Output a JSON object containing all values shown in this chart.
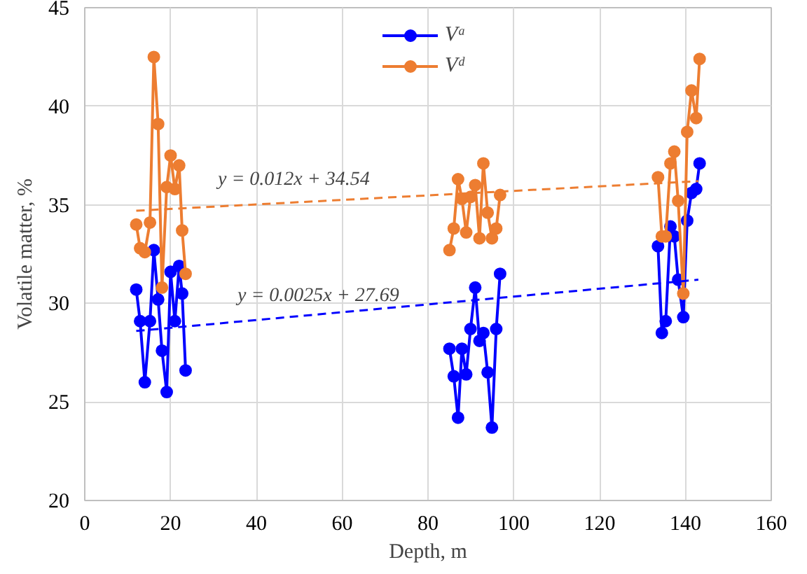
{
  "chart_data": {
    "type": "line",
    "xlabel": "Depth, m",
    "ylabel": "Volatile matter, %",
    "xlim": [
      0,
      160
    ],
    "ylim": [
      20,
      45
    ],
    "xticks": [
      0,
      20,
      40,
      60,
      80,
      100,
      120,
      140,
      160
    ],
    "yticks": [
      20,
      25,
      30,
      35,
      40,
      45
    ],
    "grid": true,
    "legend": "top",
    "marker": "circle",
    "line_style": "solid",
    "series": [
      {
        "name": "Vᵃ",
        "color": "#0000ff",
        "x": [
          12.0,
          12.9,
          14.0,
          15.2,
          16.1,
          17.1,
          18.0,
          19.1,
          20.0,
          21.0,
          22.0,
          22.7,
          23.5,
          54,
          85.0,
          86.0,
          87.0,
          87.9,
          88.9,
          89.9,
          91.0,
          92.0,
          92.9,
          93.9,
          94.9,
          95.9,
          96.8,
          115,
          133.6,
          134.5,
          135.4,
          136.5,
          137.4,
          138.3,
          139.5,
          140.4,
          141.4,
          142.5,
          143.3
        ],
        "values": [
          30.7,
          29.1,
          26.0,
          29.1,
          32.7,
          30.2,
          27.6,
          25.5,
          31.6,
          29.1,
          31.9,
          30.5,
          26.6,
          null,
          27.7,
          26.3,
          24.2,
          27.7,
          26.4,
          28.7,
          30.8,
          28.1,
          28.5,
          26.5,
          23.7,
          28.7,
          31.5,
          null,
          32.9,
          28.5,
          29.1,
          33.9,
          33.4,
          31.2,
          29.3,
          34.2,
          35.6,
          35.8,
          37.1
        ]
      },
      {
        "name": "Vᵈ",
        "color": "#ed7d31",
        "x": [
          12.0,
          12.9,
          14.0,
          15.2,
          16.1,
          17.1,
          18.0,
          19.1,
          20.0,
          21.0,
          22.0,
          22.7,
          23.5,
          54,
          85.0,
          86.0,
          87.0,
          87.9,
          88.9,
          89.9,
          91.0,
          92.0,
          92.9,
          93.9,
          94.9,
          95.9,
          96.8,
          115,
          133.6,
          134.5,
          135.4,
          136.5,
          137.4,
          138.3,
          139.5,
          140.4,
          141.4,
          142.5,
          143.3
        ],
        "values": [
          34.0,
          32.8,
          32.6,
          34.1,
          42.5,
          39.1,
          30.8,
          35.9,
          37.5,
          35.8,
          37.0,
          33.7,
          31.5,
          null,
          32.7,
          33.8,
          36.3,
          35.3,
          33.6,
          35.4,
          36.0,
          33.3,
          37.1,
          34.6,
          33.3,
          33.8,
          35.5,
          null,
          36.4,
          33.4,
          33.4,
          37.1,
          37.7,
          35.2,
          30.5,
          38.7,
          40.8,
          39.4,
          42.4
        ]
      },
      {
        "color": "#0000ff",
        "x": [
          12,
          143
        ],
        "values": [
          28.6,
          31.2
        ],
        "marker": "none",
        "line_style": "dashed"
      },
      {
        "color": "#ed7d31",
        "x": [
          12,
          143
        ],
        "values": [
          34.7,
          36.2
        ],
        "marker": "none",
        "line_style": "dashed"
      }
    ],
    "annotations": [
      "y = 0.0025x + 27.69",
      "y = 0.012x + 34.54"
    ]
  }
}
